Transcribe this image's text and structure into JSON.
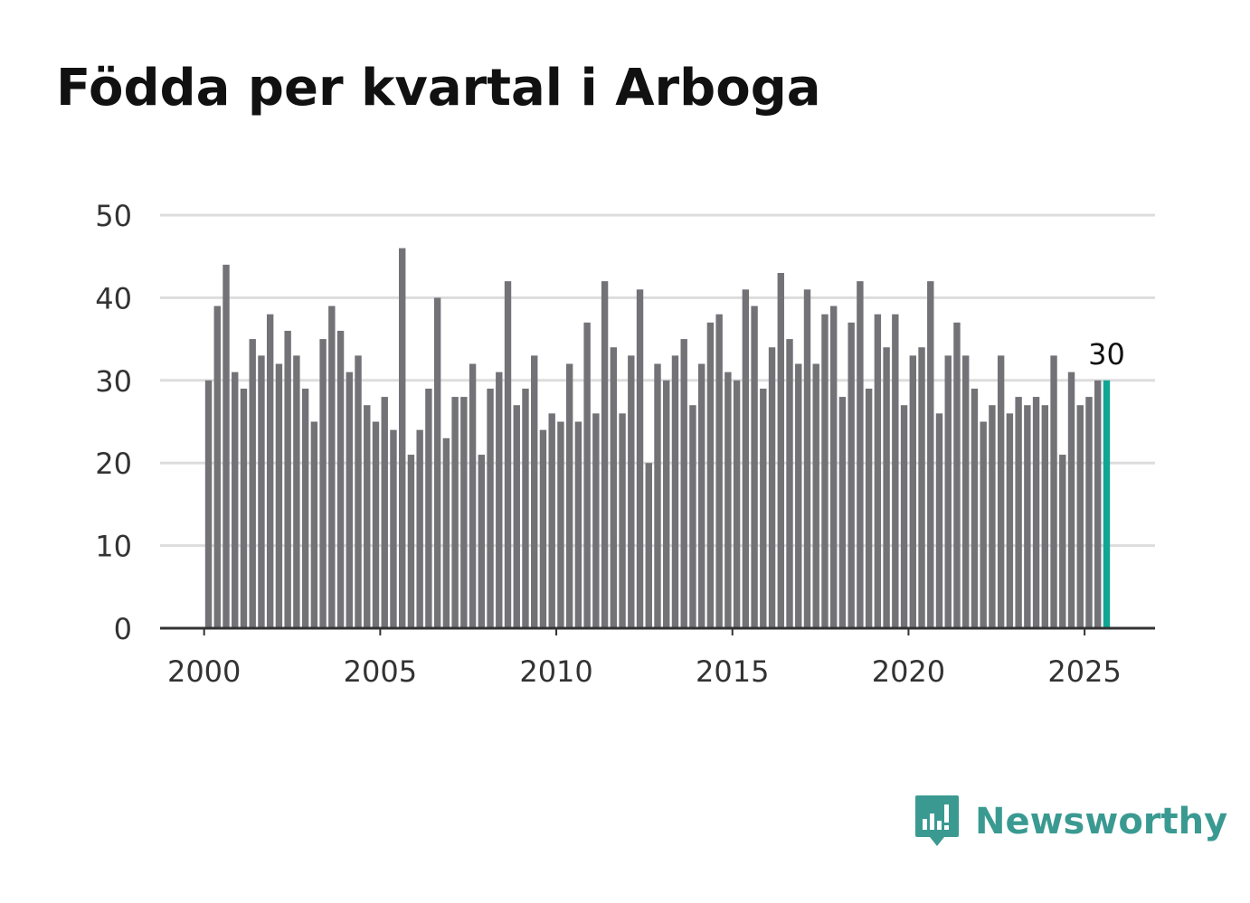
{
  "title": "Födda per kvartal i Arboga",
  "brand": {
    "name": "Newsworthy",
    "icon": "newsworthy-logo-icon",
    "color": "#3a9a91"
  },
  "colors": {
    "bar": "#737277",
    "highlight": "#11a595",
    "grid": "#dddddd",
    "axis": "#333333"
  },
  "chart_data": {
    "type": "bar",
    "title": "Födda per kvartal i Arboga",
    "xlabel": "",
    "ylabel": "",
    "ylim": [
      0,
      50
    ],
    "xlim": [
      1998.75,
      2027.0
    ],
    "grid": true,
    "y_ticks": [
      0,
      10,
      20,
      30,
      40,
      50
    ],
    "x_ticks": [
      2000,
      2005,
      2010,
      2015,
      2020,
      2025
    ],
    "start_year": 2000,
    "periods_per_year": 4,
    "highlight_last": true,
    "last_value_label": "30",
    "values": [
      30,
      39,
      44,
      31,
      29,
      35,
      33,
      38,
      32,
      36,
      33,
      29,
      25,
      35,
      39,
      36,
      31,
      33,
      27,
      25,
      28,
      24,
      46,
      21,
      24,
      29,
      40,
      23,
      28,
      28,
      32,
      21,
      29,
      31,
      42,
      27,
      29,
      33,
      24,
      26,
      25,
      32,
      25,
      37,
      26,
      42,
      34,
      26,
      33,
      41,
      20,
      32,
      30,
      33,
      35,
      27,
      32,
      37,
      38,
      31,
      30,
      41,
      39,
      29,
      34,
      43,
      35,
      32,
      41,
      32,
      38,
      39,
      28,
      37,
      42,
      29,
      38,
      34,
      38,
      27,
      33,
      34,
      42,
      26,
      33,
      37,
      33,
      29,
      25,
      27,
      33,
      26,
      28,
      27,
      28,
      27,
      33,
      21,
      31,
      27,
      28,
      30,
      30
    ]
  }
}
